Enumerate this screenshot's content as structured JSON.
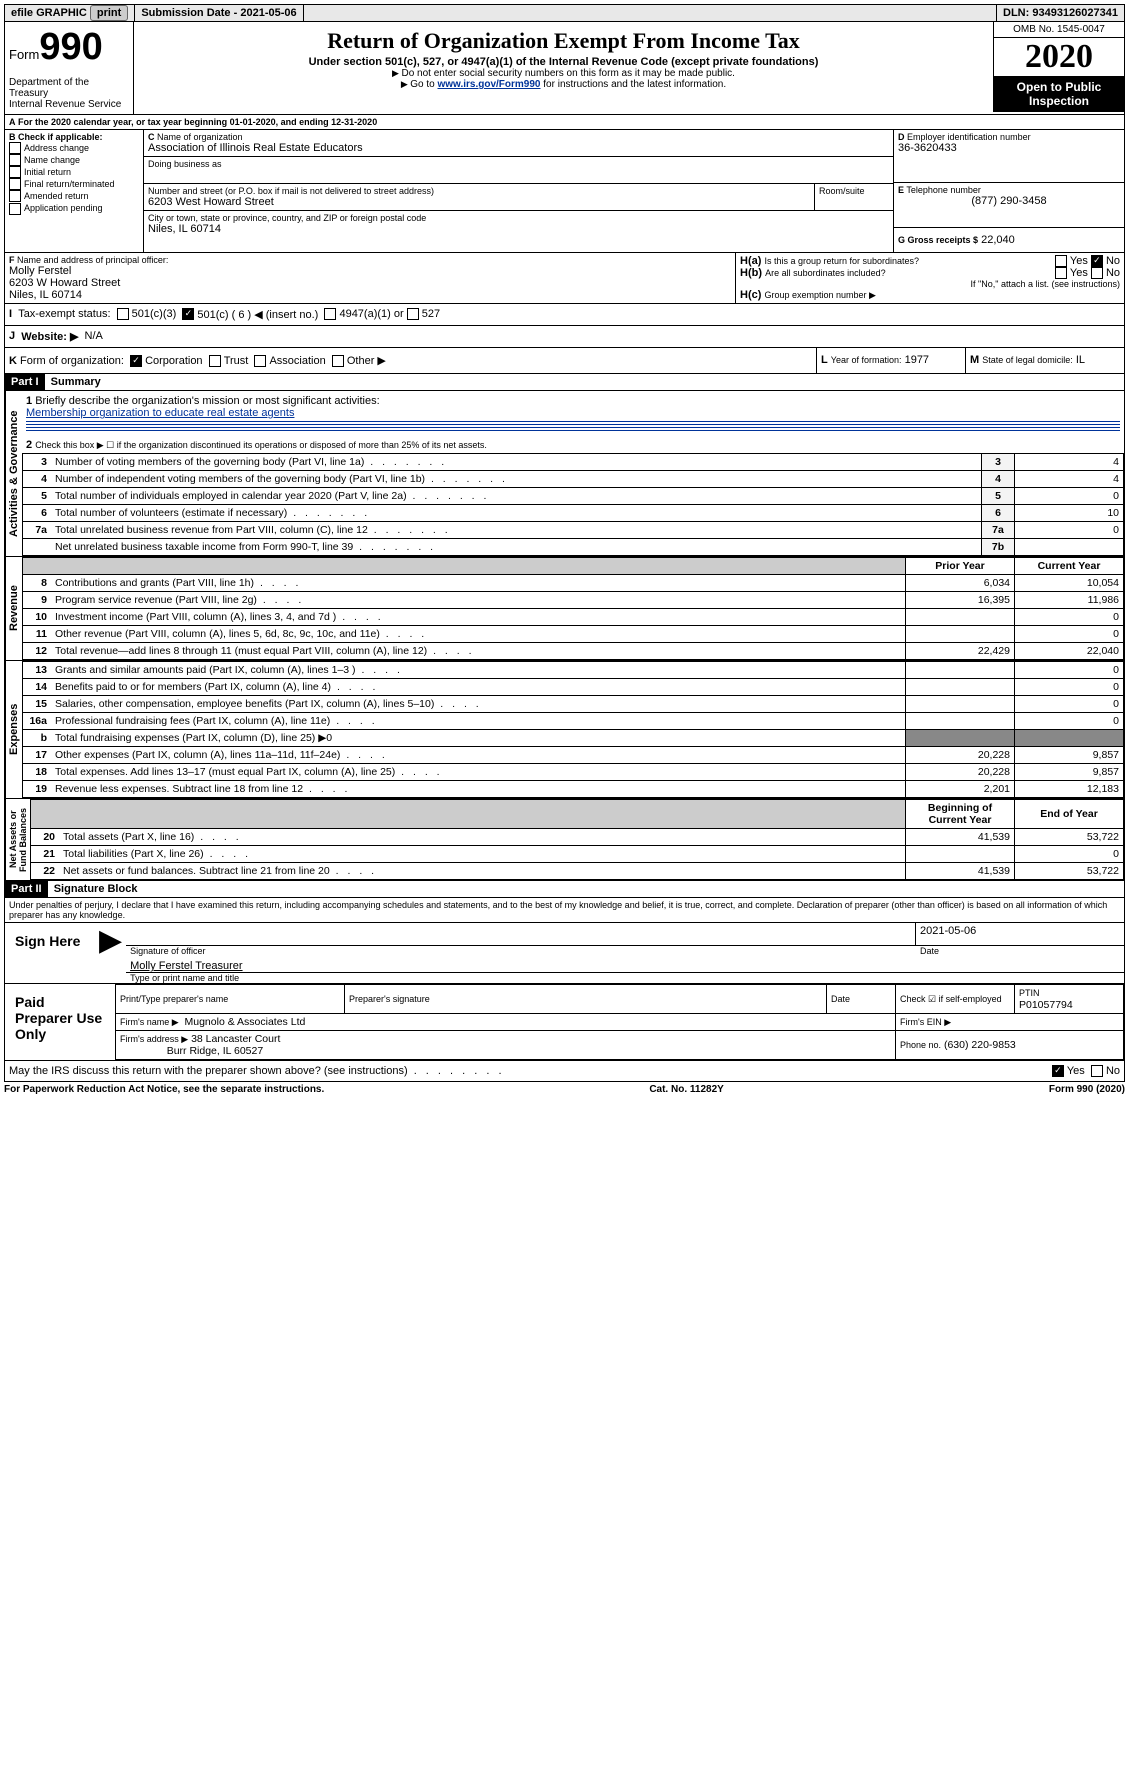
{
  "topbar": {
    "efile": "efile GRAPHIC",
    "print": "print",
    "sub_lbl": "Submission Date - ",
    "sub_date": "2021-05-06",
    "dln_lbl": "DLN: ",
    "dln": "93493126027341"
  },
  "hdr": {
    "form": "Form",
    "num": "990",
    "title": "Return of Organization Exempt From Income Tax",
    "sub": "Under section 501(c), 527, or 4947(a)(1) of the Internal Revenue Code (except private foundations)",
    "note1": "Do not enter social security numbers on this form as it may be made public.",
    "note2a": "Go to ",
    "note2_link": "www.irs.gov/Form990",
    "note2b": " for instructions and the latest information.",
    "dept": "Department of the Treasury\nInternal Revenue Service",
    "omb": "OMB No. 1545-0047",
    "year": "2020",
    "open": "Open to Public Inspection"
  },
  "A": {
    "text": "For the 2020 calendar year, or tax year beginning ",
    "begin": "01-01-2020",
    "mid": ", and ending ",
    "end": "12-31-2020"
  },
  "B": {
    "lbl": "Check if applicable:",
    "opts": [
      "Address change",
      "Name change",
      "Initial return",
      "Final return/terminated",
      "Amended return",
      "Application pending"
    ]
  },
  "C": {
    "name_lbl": "Name of organization",
    "name": "Association of Illinois Real Estate Educators",
    "dba_lbl": "Doing business as",
    "addr_lbl": "Number and street (or P.O. box if mail is not delivered to street address)",
    "addr": "6203 West Howard Street",
    "room_lbl": "Room/suite",
    "city_lbl": "City or town, state or province, country, and ZIP or foreign postal code",
    "city": "Niles, IL  60714"
  },
  "D": {
    "lbl": "Employer identification number",
    "val": "36-3620433"
  },
  "E": {
    "lbl": "Telephone number",
    "val": "(877) 290-3458"
  },
  "G": {
    "lbl": "Gross receipts $",
    "val": "22,040"
  },
  "F": {
    "lbl": "Name and address of principal officer:",
    "name": "Molly Ferstel",
    "addr1": "6203 W Howard Street",
    "addr2": "Niles, IL  60714"
  },
  "H": {
    "a_lbl": "Is this a group return for subordinates?",
    "b_lbl": "Are all subordinates included?",
    "b_note": "If \"No,\" attach a list. (see instructions)",
    "c_lbl": "Group exemption number ▶",
    "yes": "Yes",
    "no": "No"
  },
  "I": {
    "lbl": "Tax-exempt status:",
    "o1": "501(c)(3)",
    "o2": "501(c) ( 6 ) ◀ (insert no.)",
    "o3": "4947(a)(1) or",
    "o4": "527"
  },
  "J": {
    "lbl": "Website: ▶",
    "val": "N/A"
  },
  "K": {
    "lbl": "Form of organization:",
    "o1": "Corporation",
    "o2": "Trust",
    "o3": "Association",
    "o4": "Other ▶"
  },
  "L": {
    "lbl": "Year of formation:",
    "val": "1977"
  },
  "M": {
    "lbl": "State of legal domicile:",
    "val": "IL"
  },
  "part1": {
    "hdr": "Part I",
    "title": "Summary",
    "l1_lbl": "Briefly describe the organization's mission or most significant activities:",
    "l1_val": "Membership organization to educate real estate agents",
    "l2": "Check this box ▶ ☐ if the organization discontinued its operations or disposed of more than 25% of its net assets.",
    "rows": [
      {
        "n": "3",
        "t": "Number of voting members of the governing body (Part VI, line 1a)",
        "b": "3",
        "v": "4"
      },
      {
        "n": "4",
        "t": "Number of independent voting members of the governing body (Part VI, line 1b)",
        "b": "4",
        "v": "4"
      },
      {
        "n": "5",
        "t": "Total number of individuals employed in calendar year 2020 (Part V, line 2a)",
        "b": "5",
        "v": "0"
      },
      {
        "n": "6",
        "t": "Total number of volunteers (estimate if necessary)",
        "b": "6",
        "v": "10"
      },
      {
        "n": "7a",
        "t": "Total unrelated business revenue from Part VIII, column (C), line 12",
        "b": "7a",
        "v": "0"
      },
      {
        "n": "",
        "t": "Net unrelated business taxable income from Form 990-T, line 39",
        "b": "7b",
        "v": ""
      }
    ],
    "py": "Prior Year",
    "cy": "Current Year",
    "rev": [
      {
        "n": "8",
        "t": "Contributions and grants (Part VIII, line 1h)",
        "p": "6,034",
        "c": "10,054"
      },
      {
        "n": "9",
        "t": "Program service revenue (Part VIII, line 2g)",
        "p": "16,395",
        "c": "11,986"
      },
      {
        "n": "10",
        "t": "Investment income (Part VIII, column (A), lines 3, 4, and 7d )",
        "p": "",
        "c": "0"
      },
      {
        "n": "11",
        "t": "Other revenue (Part VIII, column (A), lines 5, 6d, 8c, 9c, 10c, and 11e)",
        "p": "",
        "c": "0"
      },
      {
        "n": "12",
        "t": "Total revenue—add lines 8 through 11 (must equal Part VIII, column (A), line 12)",
        "p": "22,429",
        "c": "22,040"
      }
    ],
    "exp": [
      {
        "n": "13",
        "t": "Grants and similar amounts paid (Part IX, column (A), lines 1–3 )",
        "p": "",
        "c": "0"
      },
      {
        "n": "14",
        "t": "Benefits paid to or for members (Part IX, column (A), line 4)",
        "p": "",
        "c": "0"
      },
      {
        "n": "15",
        "t": "Salaries, other compensation, employee benefits (Part IX, column (A), lines 5–10)",
        "p": "",
        "c": "0"
      },
      {
        "n": "16a",
        "t": "Professional fundraising fees (Part IX, column (A), line 11e)",
        "p": "",
        "c": "0"
      },
      {
        "n": "b",
        "t": "Total fundraising expenses (Part IX, column (D), line 25) ▶0",
        "p": "—",
        "c": "—"
      },
      {
        "n": "17",
        "t": "Other expenses (Part IX, column (A), lines 11a–11d, 11f–24e)",
        "p": "20,228",
        "c": "9,857"
      },
      {
        "n": "18",
        "t": "Total expenses. Add lines 13–17 (must equal Part IX, column (A), line 25)",
        "p": "20,228",
        "c": "9,857"
      },
      {
        "n": "19",
        "t": "Revenue less expenses. Subtract line 18 from line 12",
        "p": "2,201",
        "c": "12,183"
      }
    ],
    "bcy": "Beginning of Current Year",
    "eoy": "End of Year",
    "net": [
      {
        "n": "20",
        "t": "Total assets (Part X, line 16)",
        "p": "41,539",
        "c": "53,722"
      },
      {
        "n": "21",
        "t": "Total liabilities (Part X, line 26)",
        "p": "",
        "c": "0"
      },
      {
        "n": "22",
        "t": "Net assets or fund balances. Subtract line 21 from line 20",
        "p": "41,539",
        "c": "53,722"
      }
    ],
    "sec": {
      "ag": "Activities & Governance",
      "rv": "Revenue",
      "ex": "Expenses",
      "na": "Net Assets or\nFund Balances"
    }
  },
  "part2": {
    "hdr": "Part II",
    "title": "Signature Block",
    "decl": "Under penalties of perjury, I declare that I have examined this return, including accompanying schedules and statements, and to the best of my knowledge and belief, it is true, correct, and complete. Declaration of preparer (other than officer) is based on all information of which preparer has any knowledge.",
    "sign": "Sign Here",
    "sig_lbl": "Signature of officer",
    "date_lbl": "Date",
    "date": "2021-05-06",
    "name": "Molly Ferstel  Treasurer",
    "name_lbl": "Type or print name and title",
    "paid": "Paid Preparer Use Only",
    "p_name_lbl": "Print/Type preparer's name",
    "p_sig_lbl": "Preparer's signature",
    "p_date_lbl": "Date",
    "self_lbl": "Check ☑ if self-employed",
    "ptin_lbl": "PTIN",
    "ptin": "P01057794",
    "firm_lbl": "Firm's name  ▶",
    "firm": "Mugnolo & Associates Ltd",
    "ein_lbl": "Firm's EIN ▶",
    "faddr_lbl": "Firm's address ▶",
    "faddr1": "38 Lancaster Court",
    "faddr2": "Burr Ridge, IL  60527",
    "phone_lbl": "Phone no.",
    "phone": "(630) 220-9853",
    "discuss": "May the IRS discuss this return with the preparer shown above? (see instructions)"
  },
  "foot": {
    "pra": "For Paperwork Reduction Act Notice, see the separate instructions.",
    "cat": "Cat. No. 11282Y",
    "form": "Form 990 (2020)"
  }
}
